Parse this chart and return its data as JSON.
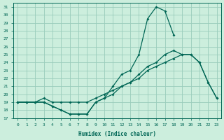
{
  "xlabel": "Humidex (Indice chaleur)",
  "bg_color": "#cceedd",
  "grid_color": "#99ccbb",
  "line_color": "#006655",
  "xlim": [
    -0.5,
    23.5
  ],
  "ylim": [
    17,
    31.5
  ],
  "xticks": [
    0,
    1,
    2,
    3,
    4,
    5,
    6,
    7,
    8,
    9,
    10,
    11,
    12,
    13,
    14,
    15,
    16,
    17,
    18,
    19,
    20,
    21,
    22,
    23
  ],
  "yticks": [
    17,
    18,
    19,
    20,
    21,
    22,
    23,
    24,
    25,
    26,
    27,
    28,
    29,
    30,
    31
  ],
  "line1_x": [
    0,
    1,
    2,
    3,
    4,
    5,
    6,
    7,
    8,
    9,
    10,
    11,
    12,
    13,
    14,
    15,
    16,
    17,
    18
  ],
  "line1_y": [
    19,
    19,
    19,
    19,
    18.5,
    18,
    17.5,
    17.5,
    17.5,
    19,
    19.5,
    21,
    22.5,
    23,
    25,
    29.5,
    31,
    30.5,
    27.5
  ],
  "line2_x": [
    0,
    1,
    2,
    3,
    4,
    5,
    6,
    7,
    8,
    9,
    10,
    11,
    12,
    13,
    14,
    15,
    16,
    17,
    18,
    19,
    20,
    21,
    22,
    23
  ],
  "line2_y": [
    19,
    19,
    19,
    19.5,
    19,
    19,
    19,
    19,
    19,
    19.5,
    20,
    20.5,
    21,
    21.5,
    22,
    23,
    23.5,
    24,
    24.5,
    25,
    25,
    24,
    21.5,
    19.5
  ],
  "line3_x": [
    0,
    1,
    2,
    3,
    4,
    5,
    6,
    7,
    8,
    9,
    10,
    11,
    12,
    13,
    14,
    15,
    16,
    17,
    18,
    19,
    20,
    21,
    22,
    23
  ],
  "line3_y": [
    19,
    19,
    19,
    19,
    18.5,
    18,
    17.5,
    17.5,
    17.5,
    19,
    19.5,
    20,
    21,
    21.5,
    22.5,
    23.5,
    24,
    25,
    25.5,
    25,
    25,
    24,
    21.5,
    19.5
  ]
}
